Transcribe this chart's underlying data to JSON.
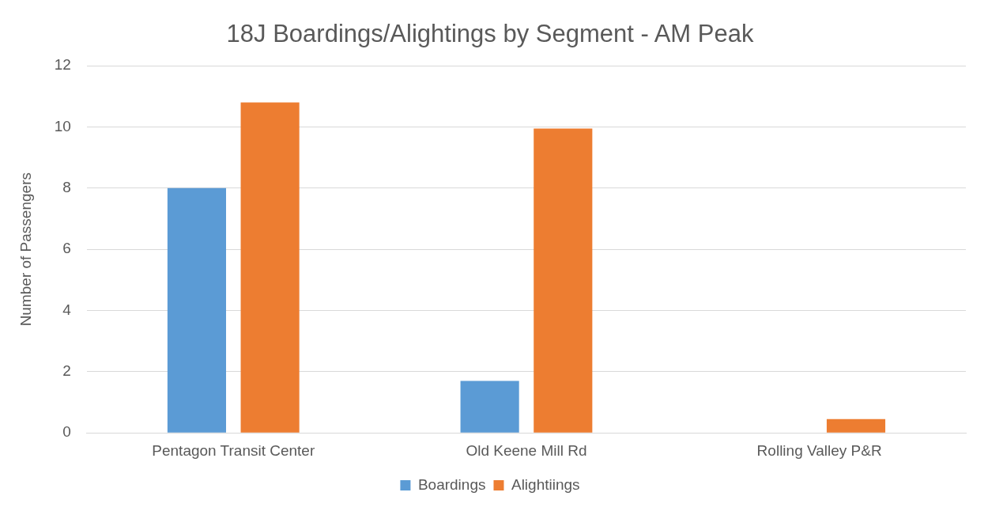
{
  "chart_data": {
    "type": "bar",
    "title": "18J Boardings/Alightings by Segment - AM Peak",
    "ylabel": "Number of Passengers",
    "categories": [
      "Pentagon Transit Center",
      "Old Keene Mill Rd",
      "Rolling Valley P&R"
    ],
    "series": [
      {
        "name": "Boardings",
        "color": "#5b9bd5",
        "values": [
          8,
          1.7,
          0
        ]
      },
      {
        "name": "Alightiings",
        "color": "#ed7d31",
        "values": [
          10.8,
          9.95,
          0.45
        ]
      }
    ],
    "ylim": [
      0,
      12
    ],
    "yticks": [
      0,
      2,
      4,
      6,
      8,
      10,
      12
    ],
    "grid": "y",
    "legend": "bottom"
  }
}
